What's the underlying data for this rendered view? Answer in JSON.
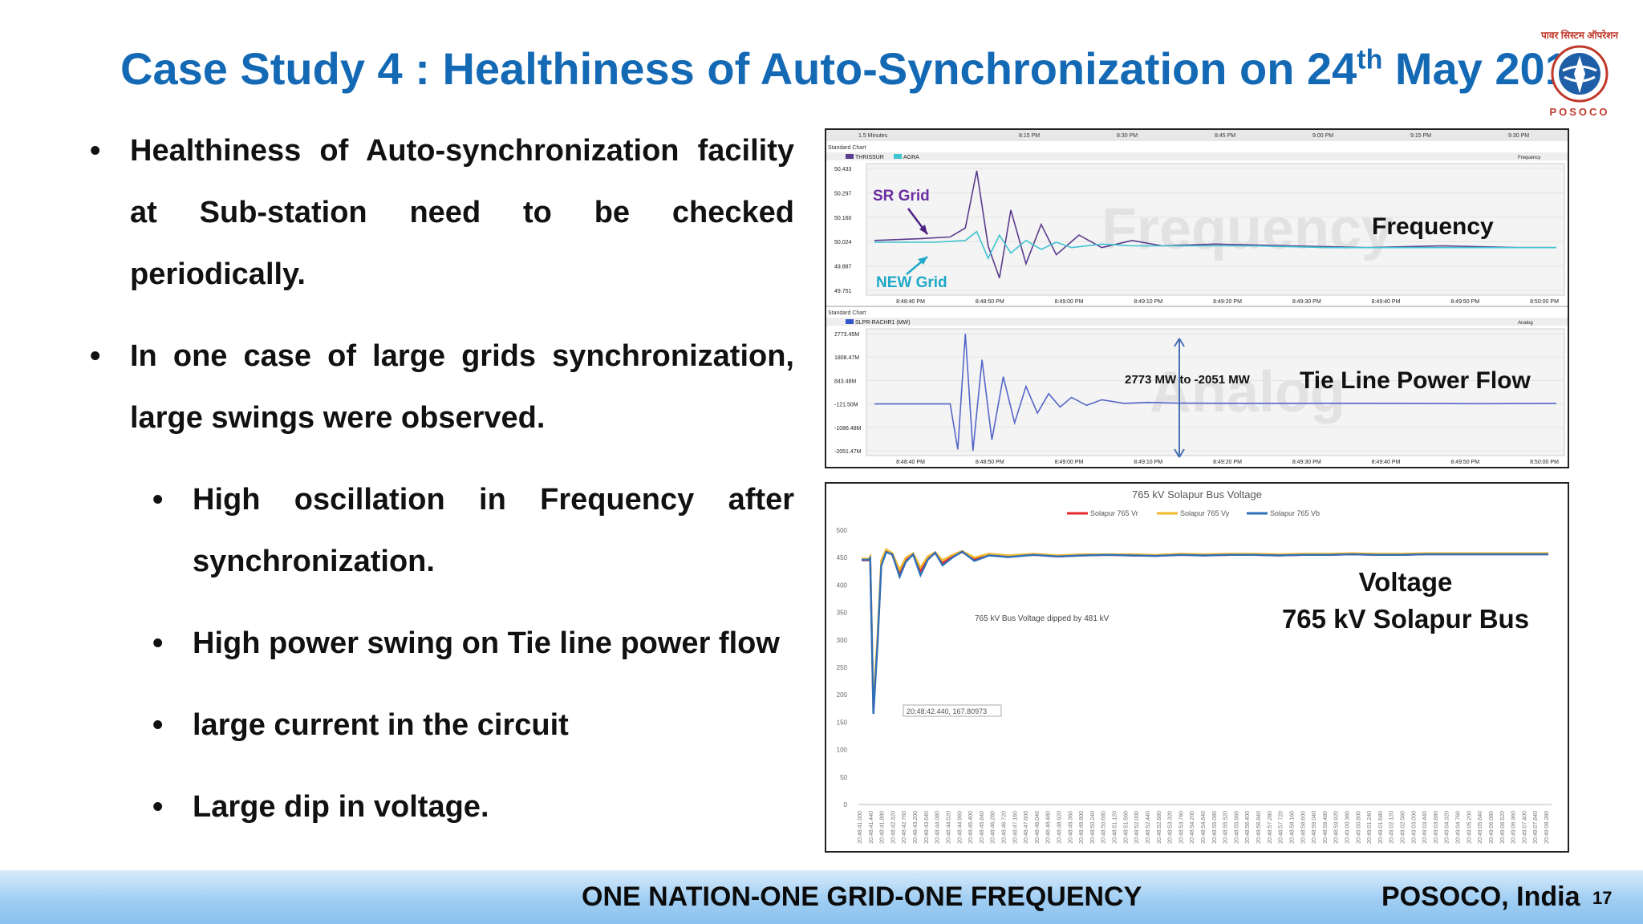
{
  "slide": {
    "title_main": "Case Study 4 : Healthiness of Auto-Synchronization on 24",
    "title_sup": "th",
    "title_end": " May 2015",
    "logo_text": "POSOCO",
    "logo_hindi": "पावर सिस्टम ऑपरेशन",
    "bullets": [
      "Healthiness of Auto-synchronization facility at Sub-station need to be checked periodically.",
      "In one case of large grids synchronization, large swings were observed."
    ],
    "sub_bullets": [
      "High oscillation in Frequency after synchronization.",
      "High power swing on Tie line power flow",
      "large current in the circuit",
      "Large dip in voltage."
    ],
    "footer_motto": "ONE NATION-ONE GRID-ONE FREQUENCY",
    "footer_org": "POSOCO, India",
    "page_number": "17"
  },
  "chart_data": [
    {
      "type": "line",
      "panel_label": "Standard Chart",
      "annotation": "Frequency",
      "watermark": "Frequency",
      "legend": [
        "THRISSUR",
        "AGRA"
      ],
      "dropdown": "Frequency",
      "y_ticks": [
        "50.433",
        "50.297",
        "50.160",
        "50.024",
        "49.887",
        "49.751"
      ],
      "x_ticks": [
        "8:48:40 PM",
        "8:48:50 PM",
        "8:49:00 PM",
        "8:49:10 PM",
        "8:49:20 PM",
        "8:49:30 PM",
        "8:49:40 PM",
        "8:49:50 PM",
        "8:50:00 PM"
      ],
      "top_time_ticks": [
        "1.5 Minutes",
        "8:15 PM",
        "8:30 PM",
        "8:45 PM",
        "9:00 PM",
        "9:15 PM",
        "9:30 PM"
      ],
      "ylim": [
        49.751,
        50.433
      ],
      "labels": {
        "sr": "SR Grid",
        "new": "NEW Grid"
      },
      "series": [
        {
          "name": "THRISSUR",
          "color": "#5a3b8c",
          "x": [
            0,
            6,
            10,
            12,
            13.5,
            15,
            16.5,
            18,
            20,
            22,
            24,
            27,
            30,
            34,
            38,
            45,
            55,
            65,
            75,
            85,
            90
          ],
          "y": [
            50.03,
            50.04,
            50.05,
            50.1,
            50.42,
            50.0,
            49.82,
            50.2,
            49.9,
            50.12,
            49.95,
            50.06,
            49.99,
            50.03,
            50.0,
            50.01,
            50.0,
            49.99,
            50.0,
            49.99,
            49.99
          ]
        },
        {
          "name": "AGRA",
          "color": "#3fc3d1",
          "x": [
            0,
            8,
            12,
            13.5,
            15,
            16.5,
            18,
            20,
            22,
            24,
            26,
            30,
            34,
            40,
            50,
            60,
            70,
            80,
            90
          ],
          "y": [
            50.02,
            50.02,
            50.03,
            50.08,
            49.93,
            50.06,
            49.96,
            50.03,
            49.98,
            50.02,
            49.99,
            50.01,
            50.0,
            50.0,
            50.0,
            49.99,
            49.99,
            49.99,
            49.99
          ]
        }
      ]
    },
    {
      "type": "line",
      "panel_label": "Standard Chart",
      "annotation": "Tie Line Power Flow",
      "range_label": "2773 MW to -2051 MW",
      "watermark": "Analog",
      "legend": [
        "SLPR-RACHR1 (MW)"
      ],
      "dropdown": "Analog",
      "y_ticks": [
        "2773.45M",
        "1808.47M",
        "843.48M",
        "-121.50M",
        "-1086.48M",
        "-2051.47M"
      ],
      "x_ticks": [
        "8:48:40 PM",
        "8:48:50 PM",
        "8:49:00 PM",
        "8:49:10 PM",
        "8:49:20 PM",
        "8:49:30 PM",
        "8:49:40 PM",
        "8:49:50 PM",
        "8:50:00 PM"
      ],
      "ylim": [
        -2051.47,
        2773.45
      ],
      "series": [
        {
          "name": "SLPR-RACHR1 (MW)",
          "color": "#5566c8",
          "x": [
            0,
            8,
            10,
            11,
            12,
            13,
            14.2,
            15.5,
            17,
            18.5,
            20,
            21.5,
            23,
            24.5,
            26,
            28,
            30,
            33,
            36,
            40,
            50,
            60,
            70,
            80,
            90
          ],
          "y": [
            -121,
            -121,
            -121,
            -2000,
            2773,
            -2051,
            1700,
            -1600,
            1000,
            -900,
            600,
            -500,
            300,
            -250,
            150,
            -180,
            50,
            -100,
            -60,
            -90,
            -100,
            -95,
            -100,
            -110,
            -100
          ]
        }
      ]
    },
    {
      "type": "line",
      "title": "765 kV Solapur Bus Voltage",
      "annotation_line1": "Voltage",
      "annotation_line2": "765 kV Solapur Bus",
      "note": "765 kV Bus Voltage dipped by 481 kV",
      "tooltip": "20:48:42.440, 167.80973",
      "ylim": [
        0,
        500
      ],
      "y_ticks": [
        "500",
        "450",
        "400",
        "350",
        "300",
        "250",
        "200",
        "150",
        "100",
        "50",
        "0"
      ],
      "x_ticks": [
        "20:48:41.000",
        "20:48:41.440",
        "20:48:41.880",
        "20:48:42.320",
        "20:48:42.760",
        "20:48:43.200",
        "20:48:43.640",
        "20:48:44.080",
        "20:48:44.520",
        "20:48:44.960",
        "20:48:45.400",
        "20:48:45.840",
        "20:48:46.280",
        "20:48:46.720",
        "20:48:47.160",
        "20:48:47.600",
        "20:48:48.040",
        "20:48:48.480",
        "20:48:48.920",
        "20:48:49.360",
        "20:48:49.800",
        "20:48:50.240",
        "20:48:50.680",
        "20:48:51.120",
        "20:48:51.560",
        "20:48:52.000",
        "20:48:52.440",
        "20:48:52.880",
        "20:48:53.320",
        "20:48:53.760",
        "20:48:54.200",
        "20:48:54.640",
        "20:48:55.080",
        "20:48:55.520",
        "20:48:55.960",
        "20:48:56.400",
        "20:48:56.840",
        "20:48:57.280",
        "20:48:57.720",
        "20:48:58.160",
        "20:48:58.600",
        "20:48:59.040",
        "20:48:59.480",
        "20:48:59.920",
        "20:49:00.360",
        "20:49:00.800",
        "20:49:01.240",
        "20:49:01.680",
        "20:49:02.120",
        "20:49:02.560",
        "20:49:03.000",
        "20:49:03.440",
        "20:49:03.880",
        "20:49:04.320",
        "20:49:04.760",
        "20:49:05.200",
        "20:49:05.640",
        "20:49:06.080",
        "20:49:06.520",
        "20:49:06.960",
        "20:49:07.400",
        "20:49:07.840",
        "20:49:08.280"
      ],
      "series": [
        {
          "name": "Solapur 765 Vr",
          "color": "#e4262e",
          "x": [
            0,
            0.3,
            0.35,
            0.48,
            0.65,
            0.8,
            1.0,
            1.25,
            1.55,
            1.8,
            2.1,
            2.4,
            2.7,
            3.0,
            3.3,
            3.7,
            4.1,
            4.6,
            5.2,
            6,
            7,
            8,
            9,
            10,
            11,
            12,
            13,
            14,
            15,
            16,
            17,
            18,
            19,
            20,
            21,
            22,
            23,
            24,
            25,
            26,
            27,
            28
          ],
          "y": [
            445,
            445,
            450,
            170,
            300,
            440,
            462,
            455,
            420,
            445,
            455,
            425,
            448,
            458,
            440,
            452,
            460,
            447,
            455,
            452,
            455,
            452,
            454,
            455,
            454,
            453,
            455,
            454,
            455,
            455,
            454,
            455,
            455,
            456,
            455,
            455,
            456,
            456,
            456,
            456,
            456,
            456
          ]
        },
        {
          "name": "Solapur 765 Vy",
          "color": "#f0b82c",
          "x": [
            0,
            0.3,
            0.35,
            0.48,
            0.65,
            0.8,
            1.0,
            1.25,
            1.55,
            1.8,
            2.1,
            2.4,
            2.7,
            3.0,
            3.3,
            3.7,
            4.1,
            4.6,
            5.2,
            6,
            7,
            8,
            9,
            10,
            11,
            12,
            13,
            14,
            15,
            16,
            17,
            18,
            19,
            20,
            21,
            22,
            23,
            24,
            25,
            26,
            27,
            28
          ],
          "y": [
            448,
            448,
            452,
            180,
            310,
            445,
            465,
            458,
            428,
            450,
            458,
            432,
            452,
            460,
            445,
            455,
            462,
            450,
            457,
            454,
            457,
            454,
            456,
            456,
            456,
            455,
            457,
            456,
            457,
            457,
            456,
            457,
            457,
            458,
            457,
            457,
            458,
            458,
            458,
            458,
            458,
            458
          ]
        },
        {
          "name": "Solapur 765 Vb",
          "color": "#2f6fb8",
          "x": [
            0,
            0.3,
            0.35,
            0.48,
            0.65,
            0.8,
            1.0,
            1.25,
            1.55,
            1.8,
            2.1,
            2.4,
            2.7,
            3.0,
            3.3,
            3.7,
            4.1,
            4.6,
            5.2,
            6,
            7,
            8,
            9,
            10,
            11,
            12,
            13,
            14,
            15,
            16,
            17,
            18,
            19,
            20,
            21,
            22,
            23,
            24,
            25,
            26,
            27,
            28
          ],
          "y": [
            446,
            446,
            449,
            165,
            295,
            435,
            460,
            456,
            415,
            442,
            456,
            418,
            446,
            459,
            436,
            450,
            461,
            444,
            454,
            451,
            455,
            452,
            454,
            455,
            454,
            453,
            455,
            454,
            455,
            455,
            454,
            455,
            455,
            456,
            455,
            455,
            456,
            456,
            456,
            456,
            456,
            456
          ]
        }
      ]
    }
  ]
}
